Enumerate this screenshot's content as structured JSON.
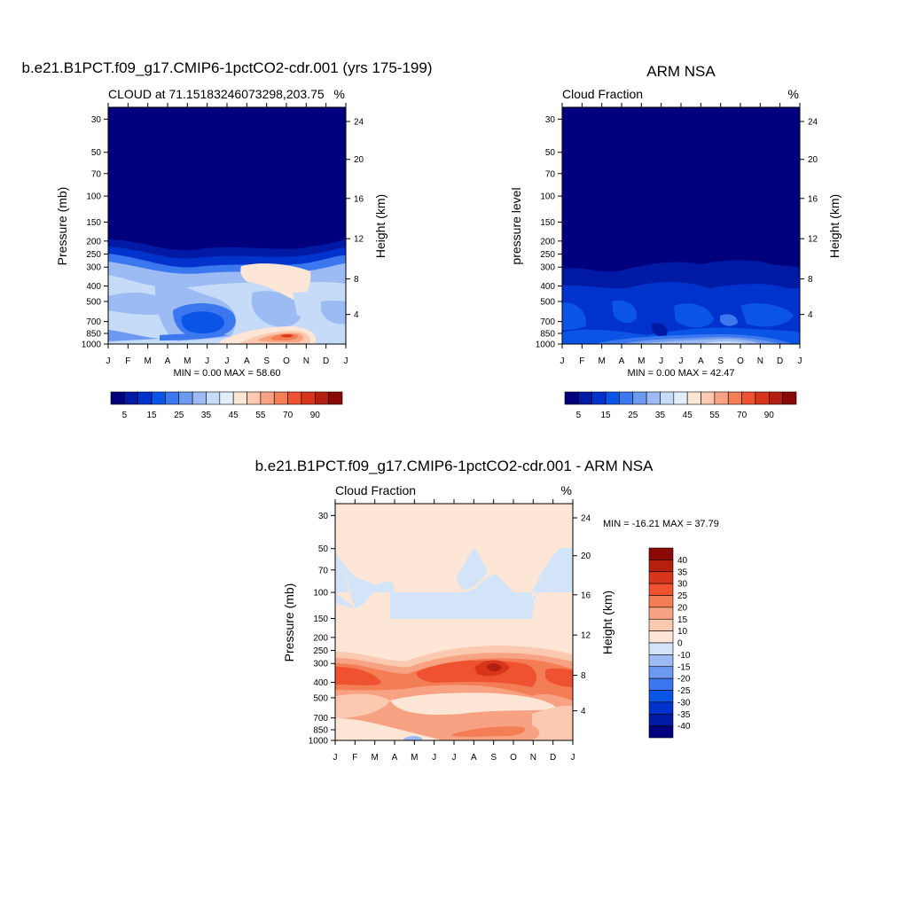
{
  "palettes": {
    "absolute": [
      "#00007f",
      "#001aa5",
      "#0033cc",
      "#0a55e6",
      "#3b78f0",
      "#6d9af0",
      "#9dbbf3",
      "#c5dbf7",
      "#e3eefb",
      "#fde6d6",
      "#fbc8b0",
      "#f7a383",
      "#f37e55",
      "#ee5230",
      "#d9351a",
      "#b51f10",
      "#8c0a06"
    ],
    "diff": [
      "#00007f",
      "#001aa5",
      "#0033cc",
      "#0a55e6",
      "#3b78f0",
      "#6d9af0",
      "#9dbbf3",
      "#d3e4f8",
      "#fde6d6",
      "#fbc8b0",
      "#f7a383",
      "#f37e55",
      "#ee5230",
      "#d9351a",
      "#b51f10",
      "#8c0a06"
    ]
  },
  "chart_data": [
    {
      "type": "heatmap",
      "title": "b.e21.B1PCT.f09_g17.CMIP6-1pctCO2-cdr.001 (yrs 175-199)",
      "subtitle_left": "CLOUD at 71.15183246073298,203.75",
      "subtitle_right": "%",
      "ylabel": "Pressure (mb)",
      "ylabel_right": "Height (km)",
      "months": [
        "J",
        "F",
        "M",
        "A",
        "M",
        "J",
        "J",
        "A",
        "S",
        "O",
        "N",
        "D",
        "J"
      ],
      "pressure_ticks": [
        "30",
        "50",
        "70",
        "100",
        "150",
        "200",
        "250",
        "300",
        "400",
        "500",
        "700",
        "850",
        "1000"
      ],
      "height_ticks": [
        "24",
        "20",
        "16",
        "12",
        "8",
        "4"
      ],
      "minmax": "MIN =   0.00 MAX =  58.60",
      "colorbar_labels": [
        "5",
        "15",
        "25",
        "35",
        "45",
        "55",
        "70",
        "90"
      ],
      "levels": [
        0,
        2,
        5,
        10,
        15,
        20,
        25,
        30,
        35,
        40,
        45,
        50,
        55,
        60,
        70,
        80,
        90
      ]
    },
    {
      "type": "heatmap",
      "title": "ARM NSA",
      "subtitle_left": "Cloud Fraction",
      "subtitle_right": "%",
      "ylabel": "pressure level",
      "ylabel_right": "Height (km)",
      "months": [
        "J",
        "F",
        "M",
        "A",
        "M",
        "J",
        "J",
        "A",
        "S",
        "O",
        "N",
        "D",
        "J"
      ],
      "pressure_ticks": [
        "30",
        "50",
        "70",
        "100",
        "150",
        "200",
        "250",
        "300",
        "400",
        "500",
        "700",
        "850",
        "1000"
      ],
      "height_ticks": [
        "24",
        "20",
        "16",
        "12",
        "8",
        "4"
      ],
      "minmax": "MIN =   0.00 MAX =  42.47",
      "colorbar_labels": [
        "5",
        "15",
        "25",
        "35",
        "45",
        "55",
        "70",
        "90"
      ]
    },
    {
      "type": "heatmap",
      "title": "b.e21.B1PCT.f09_g17.CMIP6-1pctCO2-cdr.001 - ARM NSA",
      "subtitle_left": "Cloud Fraction",
      "subtitle_right": "%",
      "ylabel": "Pressure (mb)",
      "ylabel_right": "Height (km)",
      "months": [
        "J",
        "F",
        "M",
        "A",
        "M",
        "J",
        "J",
        "A",
        "S",
        "O",
        "N",
        "D",
        "J"
      ],
      "pressure_ticks": [
        "30",
        "50",
        "70",
        "100",
        "150",
        "200",
        "250",
        "300",
        "400",
        "500",
        "700",
        "850",
        "1000"
      ],
      "height_ticks": [
        "24",
        "20",
        "16",
        "12",
        "8",
        "4"
      ],
      "minmax": "MIN = -16.21 MAX =  37.79",
      "colorbar_labels": [
        "40",
        "35",
        "30",
        "25",
        "20",
        "15",
        "10",
        "0",
        "-10",
        "-15",
        "-20",
        "-25",
        "-30",
        "-35",
        "-40"
      ]
    }
  ]
}
